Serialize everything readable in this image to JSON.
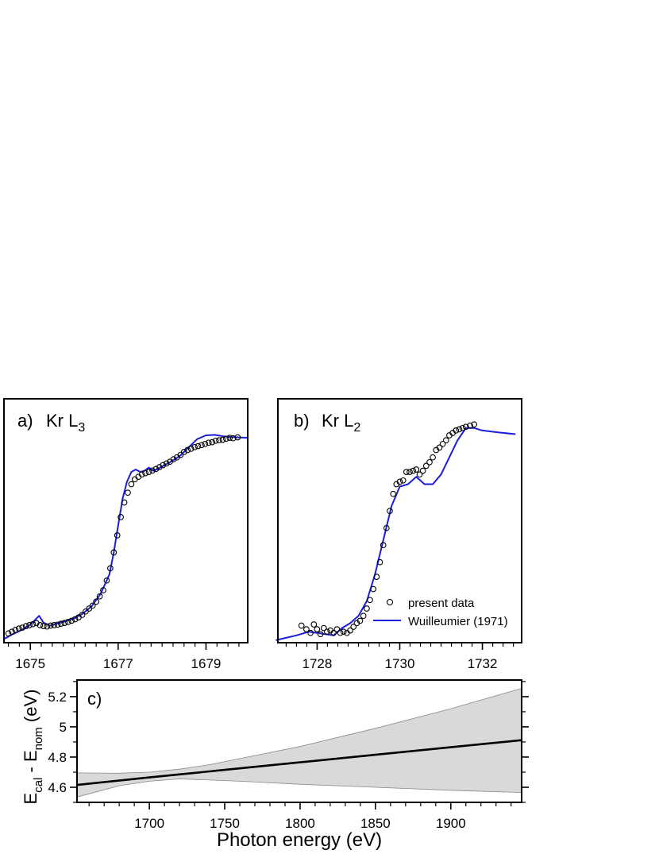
{
  "chart_data": [
    {
      "type": "scatter",
      "panel_label": "a)",
      "title": "Kr L",
      "title_subscript": "3",
      "xlim": [
        1674.4,
        1679.95
      ],
      "ylim": [
        0,
        1
      ],
      "x_ticks": [
        1675,
        1677,
        1679
      ],
      "x_tick_labels": [
        "1675",
        "1677",
        "1679"
      ],
      "y_axis_labels": "none",
      "series": [
        {
          "kind": "points",
          "color": "#000000",
          "marker": "open-circle",
          "x": [
            1674.5,
            1674.58,
            1674.66,
            1674.74,
            1674.82,
            1674.9,
            1674.98,
            1675.06,
            1675.14,
            1675.22,
            1675.3,
            1675.38,
            1675.46,
            1675.54,
            1675.62,
            1675.7,
            1675.78,
            1675.86,
            1675.94,
            1676.02,
            1676.1,
            1676.18,
            1676.26,
            1676.34,
            1676.42,
            1676.5,
            1676.58,
            1676.66,
            1676.74,
            1676.82,
            1676.9,
            1676.98,
            1677.06,
            1677.14,
            1677.22,
            1677.3,
            1677.38,
            1677.46,
            1677.54,
            1677.62,
            1677.7,
            1677.78,
            1677.86,
            1677.94,
            1678.02,
            1678.1,
            1678.18,
            1678.26,
            1678.34,
            1678.42,
            1678.5,
            1678.58,
            1678.66,
            1678.74,
            1678.82,
            1678.9,
            1678.98,
            1679.06,
            1679.14,
            1679.22,
            1679.3,
            1679.38,
            1679.46,
            1679.54,
            1679.62,
            1679.72
          ],
          "y": [
            0.038,
            0.045,
            0.052,
            0.058,
            0.062,
            0.068,
            0.072,
            0.076,
            0.08,
            0.072,
            0.068,
            0.066,
            0.07,
            0.072,
            0.074,
            0.078,
            0.081,
            0.085,
            0.09,
            0.096,
            0.104,
            0.114,
            0.128,
            0.14,
            0.152,
            0.168,
            0.19,
            0.215,
            0.255,
            0.305,
            0.37,
            0.44,
            0.515,
            0.575,
            0.615,
            0.65,
            0.67,
            0.68,
            0.69,
            0.695,
            0.7,
            0.706,
            0.712,
            0.72,
            0.728,
            0.735,
            0.742,
            0.752,
            0.76,
            0.77,
            0.782,
            0.79,
            0.795,
            0.802,
            0.806,
            0.81,
            0.815,
            0.82,
            0.822,
            0.828,
            0.83,
            0.832,
            0.836,
            0.84,
            0.838,
            0.842
          ]
        },
        {
          "kind": "line",
          "color": "#1c1cdc",
          "x": [
            1674.4,
            1674.6,
            1674.8,
            1675.0,
            1675.1,
            1675.2,
            1675.3,
            1675.45,
            1675.6,
            1675.8,
            1676.0,
            1676.2,
            1676.4,
            1676.6,
            1676.8,
            1676.9,
            1677.0,
            1677.1,
            1677.2,
            1677.3,
            1677.4,
            1677.5,
            1677.6,
            1677.7,
            1677.8,
            1677.9,
            1678.0,
            1678.2,
            1678.4,
            1678.6,
            1678.8,
            1679.0,
            1679.2,
            1679.4,
            1679.6,
            1679.95
          ],
          "y": [
            0.015,
            0.035,
            0.052,
            0.074,
            0.092,
            0.11,
            0.082,
            0.07,
            0.078,
            0.088,
            0.1,
            0.12,
            0.15,
            0.2,
            0.28,
            0.37,
            0.48,
            0.59,
            0.66,
            0.7,
            0.71,
            0.7,
            0.705,
            0.718,
            0.705,
            0.712,
            0.722,
            0.742,
            0.765,
            0.8,
            0.835,
            0.85,
            0.852,
            0.846,
            0.843,
            0.84
          ]
        }
      ]
    },
    {
      "type": "scatter",
      "panel_label": "b)",
      "title": "Kr L",
      "title_subscript": "2",
      "xlim": [
        1727.05,
        1732.95
      ],
      "ylim": [
        0,
        1
      ],
      "x_ticks": [
        1728,
        1730,
        1732
      ],
      "x_tick_labels": [
        "1728",
        "1730",
        "1732"
      ],
      "y_axis_labels": "none",
      "legend_position": "bottom-right",
      "series": [
        {
          "name": "present data",
          "kind": "points",
          "color": "#000000",
          "marker": "open-circle",
          "x": [
            1727.62,
            1727.74,
            1727.84,
            1727.92,
            1728.0,
            1728.08,
            1728.16,
            1728.24,
            1728.32,
            1728.4,
            1728.48,
            1728.56,
            1728.64,
            1728.72,
            1728.8,
            1728.88,
            1728.96,
            1729.04,
            1729.12,
            1729.2,
            1729.28,
            1729.36,
            1729.44,
            1729.52,
            1729.6,
            1729.68,
            1729.76,
            1729.84,
            1729.92,
            1730.0,
            1730.08,
            1730.16,
            1730.24,
            1730.32,
            1730.4,
            1730.48,
            1730.56,
            1730.64,
            1730.72,
            1730.8,
            1730.88,
            1730.96,
            1731.04,
            1731.12,
            1731.2,
            1731.28,
            1731.36,
            1731.44,
            1731.52,
            1731.6,
            1731.7,
            1731.8
          ],
          "y": [
            0.07,
            0.055,
            0.04,
            0.075,
            0.055,
            0.035,
            0.06,
            0.045,
            0.05,
            0.04,
            0.055,
            0.04,
            0.045,
            0.04,
            0.05,
            0.065,
            0.08,
            0.09,
            0.11,
            0.14,
            0.175,
            0.22,
            0.27,
            0.33,
            0.4,
            0.47,
            0.54,
            0.61,
            0.65,
            0.66,
            0.665,
            0.7,
            0.7,
            0.705,
            0.71,
            0.69,
            0.705,
            0.725,
            0.74,
            0.76,
            0.79,
            0.8,
            0.815,
            0.83,
            0.85,
            0.86,
            0.87,
            0.875,
            0.88,
            0.885,
            0.89,
            0.895
          ]
        },
        {
          "name": "Wuilleumier (1971)",
          "kind": "line",
          "color": "#1c1cdc",
          "x": [
            1727.0,
            1727.5,
            1727.8,
            1728.0,
            1728.2,
            1728.4,
            1728.6,
            1728.8,
            1729.0,
            1729.2,
            1729.4,
            1729.6,
            1729.8,
            1730.0,
            1730.2,
            1730.4,
            1730.6,
            1730.8,
            1731.0,
            1731.2,
            1731.4,
            1731.6,
            1731.8,
            1732.0,
            1732.4,
            1732.8
          ],
          "y": [
            0.01,
            0.03,
            0.045,
            0.04,
            0.035,
            0.03,
            0.06,
            0.08,
            0.11,
            0.17,
            0.28,
            0.42,
            0.56,
            0.64,
            0.65,
            0.68,
            0.65,
            0.65,
            0.69,
            0.76,
            0.83,
            0.88,
            0.88,
            0.87,
            0.862,
            0.855
          ]
        }
      ]
    },
    {
      "type": "line",
      "panel_label": "c)",
      "xlabel": "Photon energy (eV)",
      "ylabel_main": "E",
      "ylabel_sub1": "cal",
      "ylabel_mid": " - E",
      "ylabel_sub2": "nom",
      "ylabel_unit": " (eV)",
      "xlim": [
        1652,
        1947
      ],
      "ylim": [
        4.5,
        5.31
      ],
      "x_ticks": [
        1700,
        1750,
        1800,
        1850,
        1900
      ],
      "x_tick_labels": [
        "1700",
        "1750",
        "1800",
        "1850",
        "1900"
      ],
      "y_ticks": [
        4.6,
        4.8,
        5.0,
        5.2
      ],
      "y_tick_labels": [
        "4.6",
        "4.8",
        "5",
        "5.2"
      ],
      "series": [
        {
          "kind": "line",
          "color": "#000000",
          "x": [
            1652,
            1700,
            1750,
            1800,
            1850,
            1900,
            1947
          ],
          "y": [
            4.615,
            4.665,
            4.715,
            4.765,
            4.815,
            4.865,
            4.912
          ]
        },
        {
          "kind": "band",
          "color": "#d9d9d9",
          "x": [
            1652,
            1680,
            1700,
            1720,
            1740,
            1760,
            1800,
            1850,
            1900,
            1947
          ],
          "upper": [
            4.695,
            4.693,
            4.7,
            4.72,
            4.75,
            4.79,
            4.87,
            4.99,
            5.12,
            5.255
          ],
          "lower": [
            4.535,
            4.61,
            4.64,
            4.655,
            4.648,
            4.64,
            4.62,
            4.6,
            4.58,
            4.565
          ]
        }
      ]
    }
  ]
}
